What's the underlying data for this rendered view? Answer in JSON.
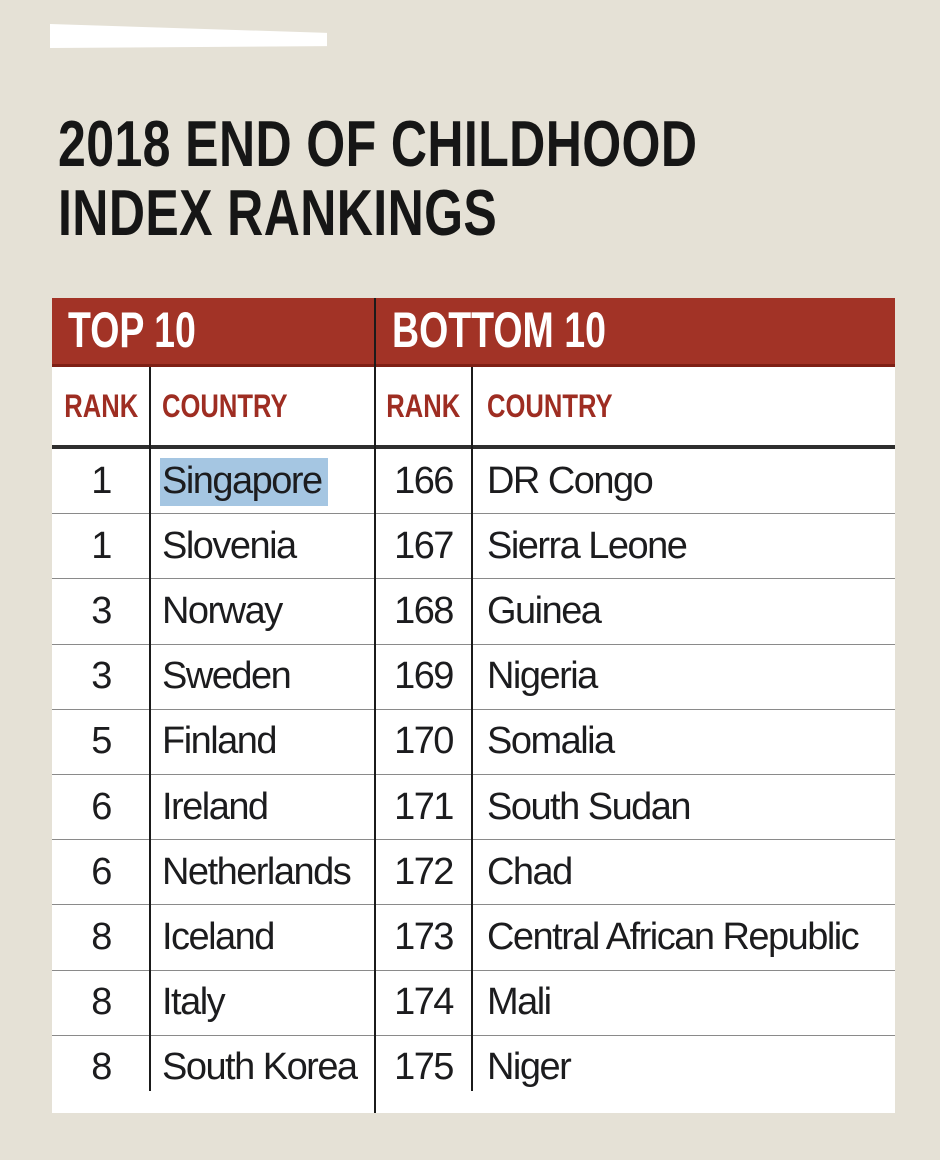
{
  "title": {
    "line1": "2018 END OF CHILDHOOD",
    "line2": "INDEX RANKINGS"
  },
  "table": {
    "left": {
      "band_label": "TOP 10",
      "rank_label": "RANK",
      "country_label": "COUNTRY",
      "rows": [
        {
          "rank": "1",
          "country": "Singapore",
          "highlight": true
        },
        {
          "rank": "1",
          "country": "Slovenia"
        },
        {
          "rank": "3",
          "country": "Norway"
        },
        {
          "rank": "3",
          "country": "Sweden"
        },
        {
          "rank": "5",
          "country": "Finland"
        },
        {
          "rank": "6",
          "country": "Ireland"
        },
        {
          "rank": "6",
          "country": "Netherlands"
        },
        {
          "rank": "8",
          "country": "Iceland"
        },
        {
          "rank": "8",
          "country": "Italy"
        },
        {
          "rank": "8",
          "country": "South Korea"
        }
      ]
    },
    "right": {
      "band_label": "BOTTOM 10",
      "rank_label": "RANK",
      "country_label": "COUNTRY",
      "rows": [
        {
          "rank": "166",
          "country": "DR Congo"
        },
        {
          "rank": "167",
          "country": "Sierra Leone"
        },
        {
          "rank": "168",
          "country": "Guinea"
        },
        {
          "rank": "169",
          "country": "Nigeria"
        },
        {
          "rank": "170",
          "country": "Somalia"
        },
        {
          "rank": "171",
          "country": "South Sudan"
        },
        {
          "rank": "172",
          "country": "Chad"
        },
        {
          "rank": "173",
          "country": "Central African Republic"
        },
        {
          "rank": "174",
          "country": "Mali"
        },
        {
          "rank": "175",
          "country": "Niger"
        }
      ]
    }
  },
  "colors": {
    "background": "#E5E1D6",
    "band_red": "#A23326",
    "band_red_dark": "#7E2015",
    "header_red": "#9E2D22",
    "text": "#1C1C1E",
    "separator": "#8A8A8A",
    "divider": "#1B1B1B",
    "thick_rule": "#2E2E2E",
    "highlight": "#A5C6E2",
    "white": "#FFFFFF"
  }
}
